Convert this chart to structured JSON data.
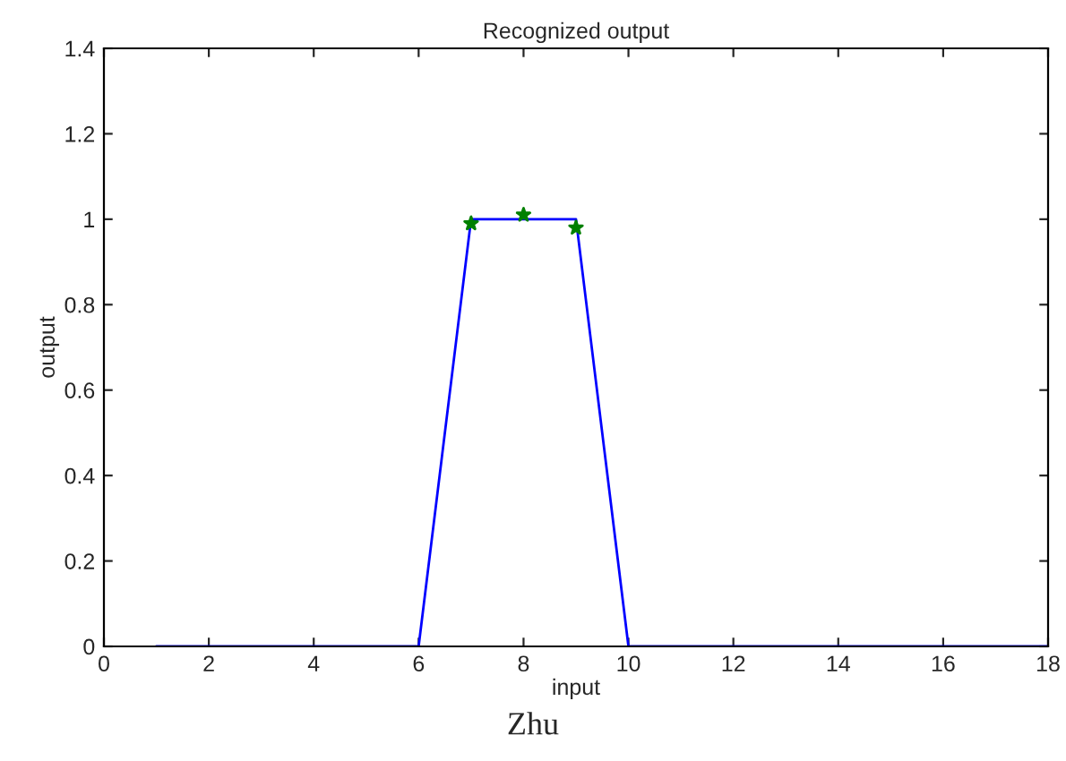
{
  "chart_data": {
    "type": "line",
    "title": "Recognized output",
    "xlabel": "input",
    "ylabel": "output",
    "series": [
      {
        "color": "#0000ff",
        "marker": "none",
        "x": [
          1,
          2,
          3,
          4,
          5,
          6,
          7,
          8,
          9,
          10,
          11,
          12,
          13,
          14,
          15,
          16,
          17,
          18
        ],
        "values": [
          0,
          0,
          0,
          0,
          0,
          0,
          1,
          1,
          1,
          0,
          0,
          0,
          0,
          0,
          0,
          0,
          0,
          0
        ]
      },
      {
        "type": "scatter",
        "color": "#008000",
        "marker": "star",
        "x": [
          7,
          8,
          9
        ],
        "values": [
          0.99,
          1.01,
          0.98
        ]
      }
    ],
    "xlim": [
      0,
      18
    ],
    "xticks": [
      0,
      2,
      4,
      6,
      8,
      10,
      12,
      14,
      16,
      18
    ],
    "ylim": [
      0,
      1.4
    ],
    "yticks": [
      0,
      0.2,
      0.4,
      0.6,
      0.8,
      1,
      1.2,
      1.4
    ],
    "grid": false,
    "legend": false,
    "annotations": [
      "Zhu"
    ]
  }
}
